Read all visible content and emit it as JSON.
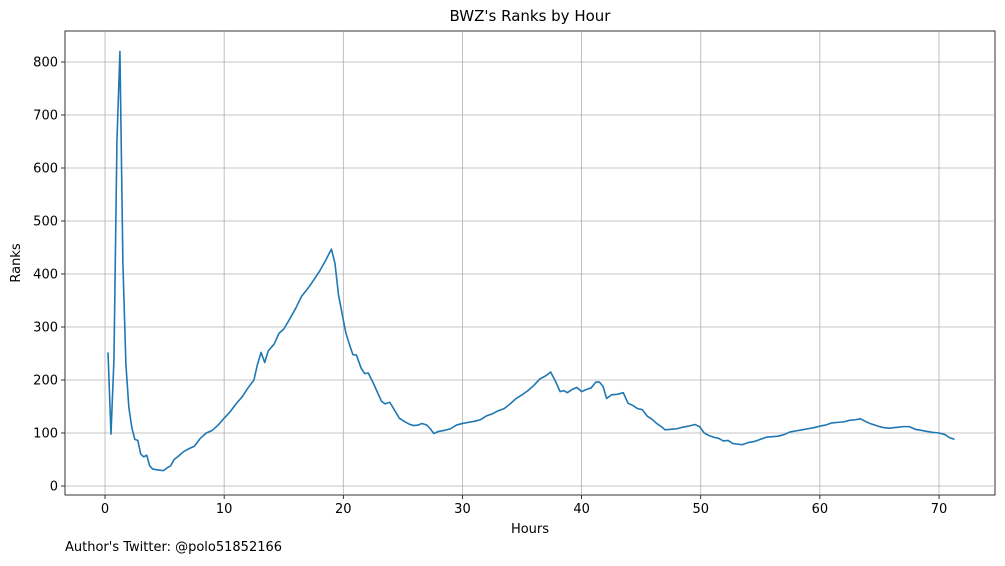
{
  "chart_data": {
    "type": "line",
    "title": "BWZ's Ranks by Hour",
    "x_label": "Hours",
    "y_label": "Ranks",
    "annotation": "Author's Twitter: @polo51852166",
    "color": "#1f77b4",
    "grid": true,
    "xlim": [
      -3.36,
      74.7
    ],
    "ylim": [
      -17,
      858.5
    ],
    "xticks": [
      0,
      10,
      20,
      30,
      40,
      50,
      60,
      70
    ],
    "yticks": [
      0,
      100,
      200,
      300,
      400,
      500,
      600,
      700,
      800
    ],
    "x": [
      0.25,
      0.5,
      0.75,
      1.0,
      1.25,
      1.5,
      1.75,
      2.0,
      2.25,
      2.5,
      2.75,
      3.0,
      3.25,
      3.5,
      3.75,
      4.0,
      4.5,
      4.9,
      5.2,
      5.5,
      5.8,
      6.2,
      6.6,
      7,
      7.5,
      8,
      8.5,
      9,
      9.5,
      10,
      10.5,
      11,
      11.5,
      12,
      12.5,
      12.8,
      13.1,
      13.4,
      13.7,
      14.2,
      14.6,
      15,
      15.5,
      16,
      16.5,
      17,
      17.5,
      18,
      18.5,
      19,
      19.3,
      19.6,
      19.9,
      20.2,
      20.5,
      20.8,
      21.1,
      21.5,
      21.8,
      22.1,
      22.5,
      22.9,
      23.2,
      23.5,
      23.9,
      24.3,
      24.7,
      25.1,
      25.5,
      25.9,
      26.3,
      26.6,
      27,
      27.3,
      27.6,
      28,
      28.5,
      29,
      29.5,
      30,
      30.5,
      31,
      31.5,
      32,
      32.5,
      33,
      33.5,
      34,
      34.5,
      35,
      35.5,
      36,
      36.5,
      37,
      37.4,
      37.8,
      38.2,
      38.5,
      38.8,
      39.2,
      39.6,
      40,
      40.4,
      40.8,
      41.2,
      41.5,
      41.8,
      42.1,
      42.5,
      43,
      43.5,
      43.9,
      44.3,
      44.7,
      45.1,
      45.5,
      45.9,
      46.3,
      46.7,
      47,
      47.5,
      48,
      48.5,
      49,
      49.5,
      49.9,
      50.3,
      50.7,
      51.1,
      51.5,
      51.9,
      52.3,
      52.7,
      53.1,
      53.5,
      54,
      54.5,
      55,
      55.5,
      56,
      56.5,
      57,
      57.5,
      58,
      58.5,
      59,
      59.5,
      60,
      60.5,
      61,
      61.5,
      62,
      62.5,
      63,
      63.4,
      63.8,
      64.2,
      64.6,
      65,
      65.4,
      65.8,
      66.2,
      66.6,
      67,
      67.5,
      68,
      68.5,
      69,
      69.5,
      70,
      70.5,
      70.9,
      71.3
    ],
    "values": [
      252,
      98,
      240,
      650,
      820,
      420,
      230,
      148,
      110,
      88,
      86,
      60,
      55,
      58,
      38,
      32,
      30,
      29,
      34,
      38,
      50,
      57,
      65,
      70,
      75,
      90,
      100,
      105,
      115,
      128,
      140,
      155,
      168,
      185,
      200,
      230,
      252,
      233,
      255,
      268,
      288,
      296,
      315,
      335,
      358,
      372,
      388,
      405,
      425,
      447,
      420,
      360,
      325,
      290,
      268,
      248,
      247,
      222,
      212,
      213,
      195,
      175,
      160,
      155,
      158,
      143,
      128,
      122,
      117,
      114,
      115,
      118,
      115,
      108,
      99,
      103,
      105,
      108,
      115,
      118,
      120,
      122,
      125,
      132,
      136,
      142,
      146,
      155,
      165,
      172,
      180,
      190,
      202,
      208,
      215,
      198,
      178,
      180,
      176,
      182,
      186,
      178,
      182,
      185,
      196,
      196,
      188,
      165,
      172,
      173,
      176,
      156,
      152,
      146,
      144,
      132,
      126,
      118,
      112,
      106,
      107,
      108,
      111,
      113,
      116,
      112,
      100,
      95,
      92,
      90,
      85,
      86,
      80,
      79,
      78,
      82,
      84,
      88,
      92,
      93,
      94,
      97,
      102,
      104,
      106,
      108,
      110,
      113,
      115,
      119,
      120,
      121,
      124,
      125,
      127,
      122,
      118,
      115,
      112,
      110,
      109,
      110,
      111,
      112,
      112,
      107,
      105,
      103,
      101,
      100,
      97,
      91,
      88
    ]
  }
}
